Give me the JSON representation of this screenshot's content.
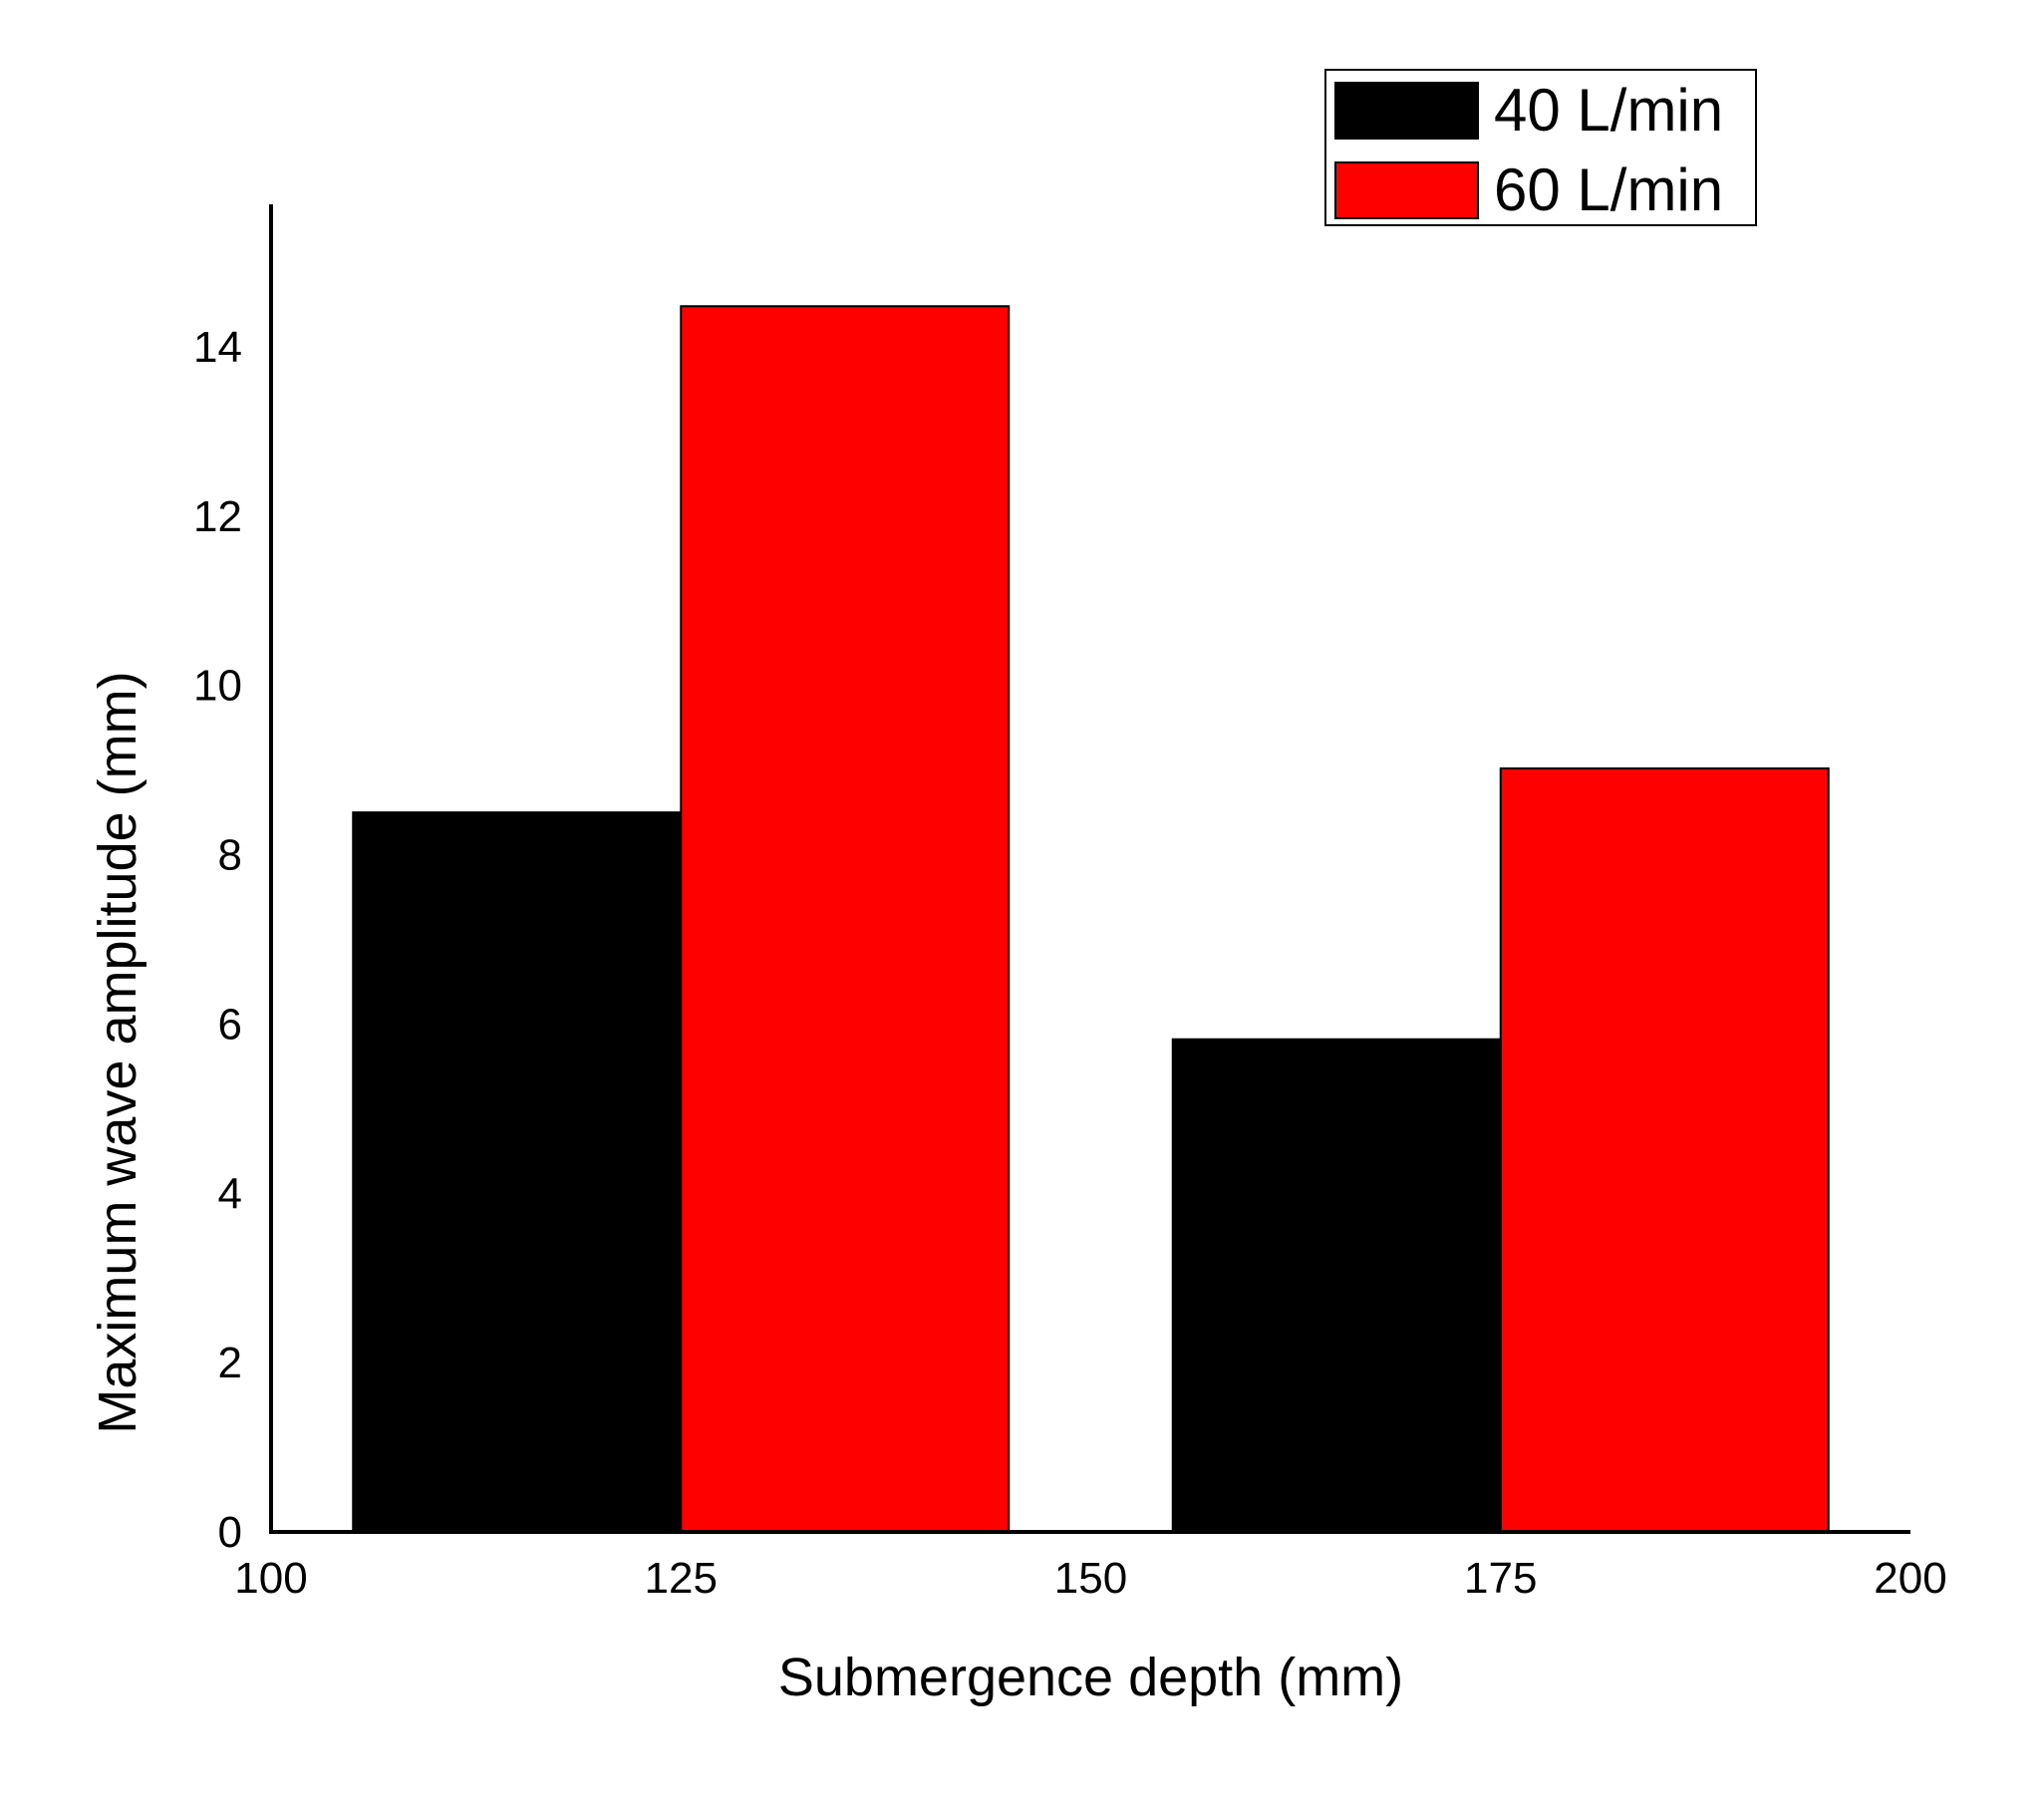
{
  "chart_data": {
    "type": "bar",
    "title": "",
    "xlabel": "Submergence depth (mm)",
    "ylabel": "Maximum wave amplitude (mm)",
    "xlim": [
      100,
      200
    ],
    "ylim": [
      0,
      15.5
    ],
    "xticks": [
      100,
      125,
      150,
      175,
      200
    ],
    "yticks": [
      0,
      2,
      4,
      6,
      8,
      10,
      12,
      14
    ],
    "grid": false,
    "legend_position": "top-right",
    "series": [
      {
        "name": "40 L/min",
        "color": "#000000",
        "bars": [
          {
            "x_start": 105,
            "x_end": 125,
            "value": 8.5
          },
          {
            "x_start": 155,
            "x_end": 175,
            "value": 5.82
          }
        ]
      },
      {
        "name": "60 L/min",
        "color": "#ff0000",
        "bars": [
          {
            "x_start": 125,
            "x_end": 145,
            "value": 14.48
          },
          {
            "x_start": 175,
            "x_end": 195,
            "value": 9.02
          }
        ]
      }
    ]
  }
}
